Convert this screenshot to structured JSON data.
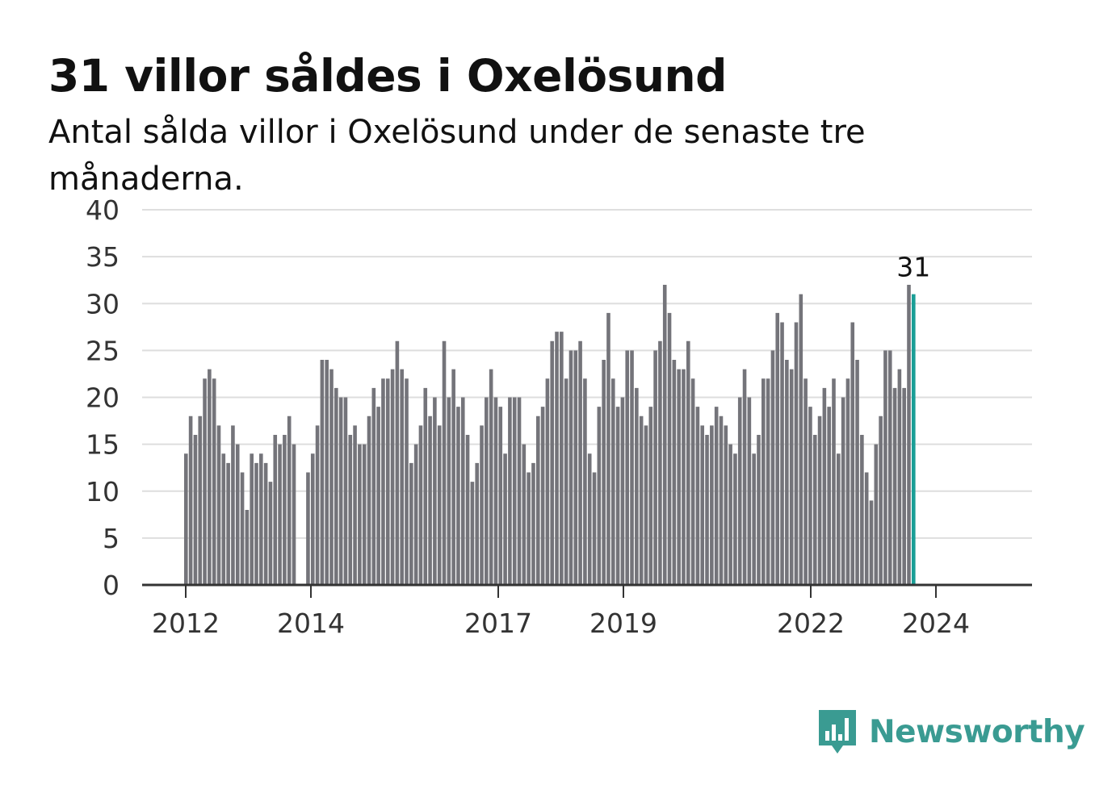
{
  "header": {
    "title": "31 villor såldes i Oxelösund",
    "subtitle": "Antal sålda villor i Oxelösund under de senaste tre månaderna."
  },
  "brand": {
    "name": "Newsworthy",
    "icon": "newsworthy-logo-icon",
    "color": "#3a9b92"
  },
  "chart_data": {
    "type": "bar",
    "title": "31 villor såldes i Oxelösund",
    "subtitle": "Antal sålda villor i Oxelösund under de senaste tre månaderna.",
    "xlabel": "",
    "ylabel": "",
    "ylim": [
      0,
      40
    ],
    "yticks": [
      0,
      5,
      10,
      15,
      20,
      25,
      30,
      35,
      40
    ],
    "xticks": [
      "2012",
      "2014",
      "2017",
      "2019",
      "2022",
      "2024"
    ],
    "grid": true,
    "bar_color": "#74747a",
    "highlight_color": "#1a9e96",
    "highlight_label": "31",
    "groups": [
      [
        14,
        18,
        16,
        18,
        22,
        23,
        22,
        17,
        14,
        13,
        17,
        15,
        12,
        8,
        14,
        13,
        14,
        13,
        11,
        16,
        15,
        16,
        18,
        15
      ],
      [
        12,
        14,
        17,
        24,
        24,
        23,
        21,
        20,
        20,
        16,
        17,
        15,
        15,
        18,
        21,
        19,
        22,
        22,
        23,
        26,
        23,
        22,
        13,
        15,
        17,
        21,
        18,
        20,
        17,
        26,
        20,
        23,
        19,
        20,
        16,
        11,
        13,
        17,
        20,
        23,
        20,
        19,
        14,
        20,
        20,
        20,
        15,
        12,
        13,
        18,
        19,
        22,
        26,
        27,
        27,
        22,
        25,
        25,
        26,
        22,
        14,
        12,
        19,
        24,
        29,
        22,
        19,
        20,
        25,
        25,
        21,
        18,
        17,
        19,
        25,
        26,
        32,
        29,
        24,
        23,
        23,
        26,
        22,
        19,
        17,
        16,
        17,
        19,
        18,
        17,
        15,
        14,
        20,
        23,
        20,
        14,
        16,
        22,
        22,
        25,
        29,
        28,
        24,
        23,
        28,
        31,
        22,
        19,
        16,
        18,
        21,
        19,
        22,
        14,
        20,
        22,
        28,
        24,
        16,
        12,
        9,
        15,
        18,
        25,
        25,
        21,
        23,
        21,
        32,
        31
      ]
    ]
  }
}
